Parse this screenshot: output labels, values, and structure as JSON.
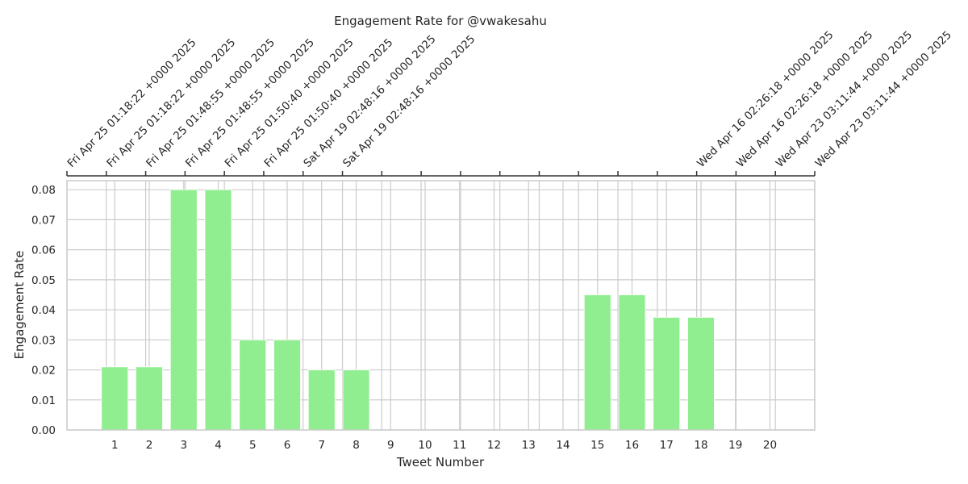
{
  "chart_data": {
    "type": "bar",
    "title": "Engagement Rate for @vwakesahu",
    "xlabel": "Tweet Number",
    "ylabel": "Engagement Rate",
    "categories": [
      "1",
      "2",
      "3",
      "4",
      "5",
      "6",
      "7",
      "8",
      "9",
      "10",
      "11",
      "12",
      "13",
      "14",
      "15",
      "16",
      "17",
      "18",
      "19",
      "20"
    ],
    "values": [
      0.021,
      0.021,
      0.08,
      0.08,
      0.03,
      0.03,
      0.02,
      0.02,
      0,
      0,
      0,
      0,
      0,
      0,
      0.045,
      0.045,
      0.0375,
      0.0375,
      0,
      0
    ],
    "ylim": [
      0,
      0.083
    ],
    "yticks": [
      "0.00",
      "0.01",
      "0.02",
      "0.03",
      "0.04",
      "0.05",
      "0.06",
      "0.07",
      "0.08"
    ],
    "bar_color": "#90ee90",
    "grid": true,
    "top_axis_labels": [
      "Fri Apr 25 01:18:22 +0000 2025",
      "Fri Apr 25 01:18:22 +0000 2025",
      "Fri Apr 25 01:48:55 +0000 2025",
      "Fri Apr 25 01:48:55 +0000 2025",
      "Fri Apr 25 01:50:40 +0000 2025",
      "Fri Apr 25 01:50:40 +0000 2025",
      "Sat Apr 19 02:48:16 +0000 2025",
      "Sat Apr 19 02:48:16 +0000 2025",
      "",
      "",
      "",
      "",
      "",
      "",
      "",
      "",
      "Wed Apr 16 02:26:18 +0000 2025",
      "Wed Apr 16 02:26:18 +0000 2025",
      "Wed Apr 23 03:11:44 +0000 2025",
      "Wed Apr 23 03:11:44 +0000 2025"
    ]
  }
}
